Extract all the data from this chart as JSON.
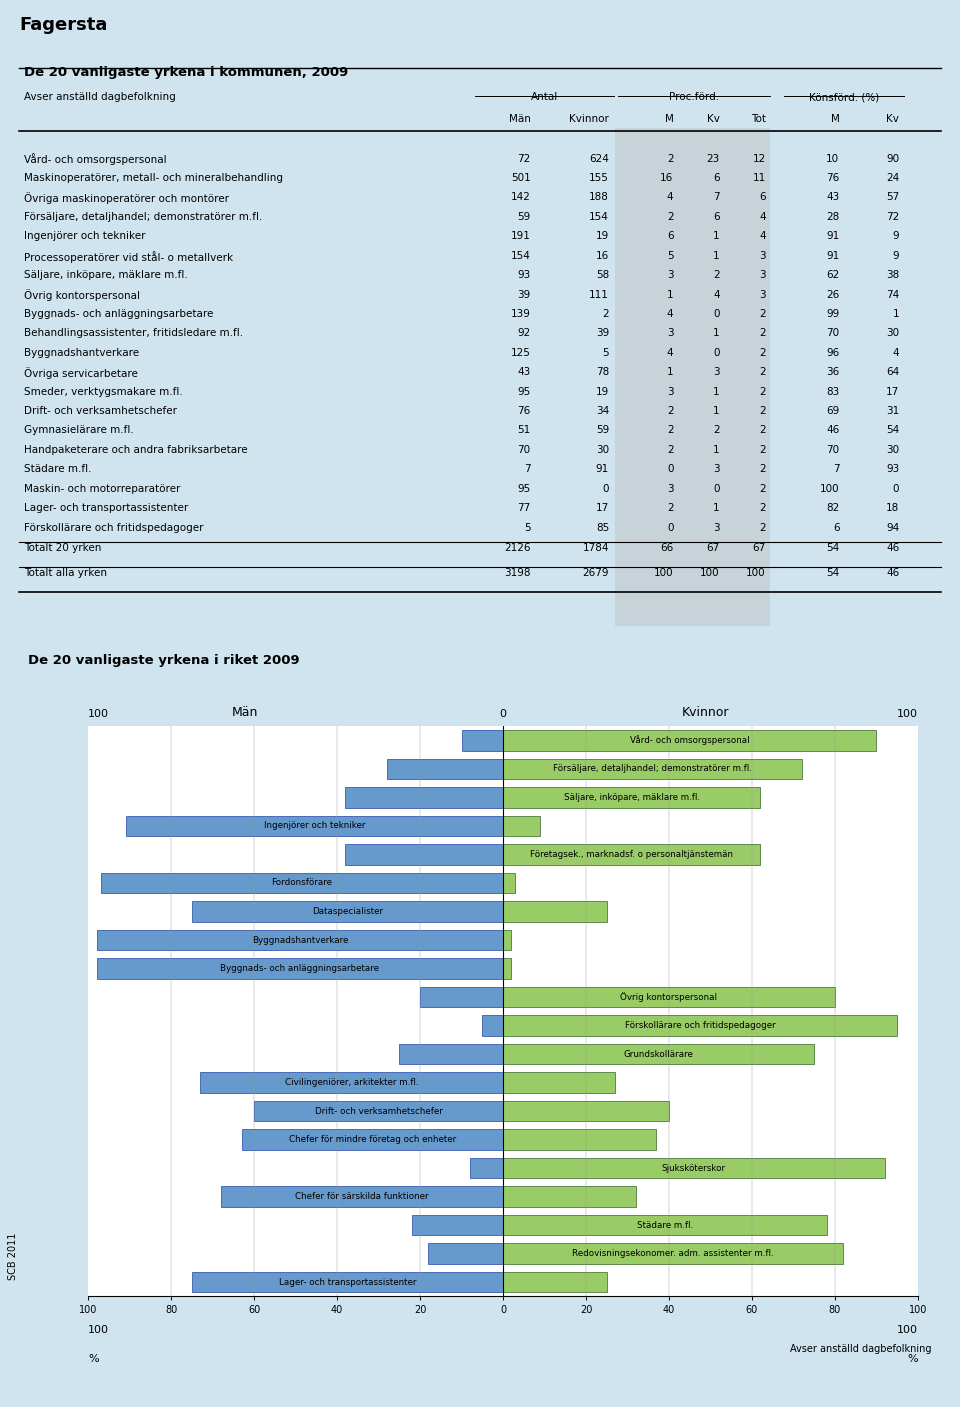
{
  "title": "Fagersta",
  "table_title": "De 20 vanligaste yrkena i kommunen, 2009",
  "chart_title": "De 20 vanligaste yrkena i riket 2009",
  "col_header1": "Avser anställd dagbefolkning",
  "col_header2": "Antal",
  "col_header3": "Proc.förd.",
  "col_header4": "Könsförd. (%)",
  "col_sub": [
    "Män",
    "Kvinnor",
    "M",
    "Kv",
    "Tot",
    "M",
    "Kv"
  ],
  "rows": [
    {
      "name": "Vård- och omsorgspersonal",
      "man": 72,
      "kvinna": 624,
      "pM": 2,
      "pKv": 23,
      "pTot": 12,
      "kM": 10,
      "kKv": 90
    },
    {
      "name": "Maskinoperatörer, metall- och mineralbehandling",
      "man": 501,
      "kvinna": 155,
      "pM": 16,
      "pKv": 6,
      "pTot": 11,
      "kM": 76,
      "kKv": 24
    },
    {
      "name": "Övriga maskinoperatörer och montörer",
      "man": 142,
      "kvinna": 188,
      "pM": 4,
      "pKv": 7,
      "pTot": 6,
      "kM": 43,
      "kKv": 57
    },
    {
      "name": "Försäljare, detaljhandel; demonstratörer m.fl.",
      "man": 59,
      "kvinna": 154,
      "pM": 2,
      "pKv": 6,
      "pTot": 4,
      "kM": 28,
      "kKv": 72
    },
    {
      "name": "Ingenjörer och tekniker",
      "man": 191,
      "kvinna": 19,
      "pM": 6,
      "pKv": 1,
      "pTot": 4,
      "kM": 91,
      "kKv": 9
    },
    {
      "name": "Processoperatörer vid stål- o metallverk",
      "man": 154,
      "kvinna": 16,
      "pM": 5,
      "pKv": 1,
      "pTot": 3,
      "kM": 91,
      "kKv": 9
    },
    {
      "name": "Säljare, inköpare, mäklare m.fl.",
      "man": 93,
      "kvinna": 58,
      "pM": 3,
      "pKv": 2,
      "pTot": 3,
      "kM": 62,
      "kKv": 38
    },
    {
      "name": "Övrig kontorspersonal",
      "man": 39,
      "kvinna": 111,
      "pM": 1,
      "pKv": 4,
      "pTot": 3,
      "kM": 26,
      "kKv": 74
    },
    {
      "name": "Byggnads- och anläggningsarbetare",
      "man": 139,
      "kvinna": 2,
      "pM": 4,
      "pKv": 0,
      "pTot": 2,
      "kM": 99,
      "kKv": 1
    },
    {
      "name": "Behandlingsassistenter, fritidsledare m.fl.",
      "man": 92,
      "kvinna": 39,
      "pM": 3,
      "pKv": 1,
      "pTot": 2,
      "kM": 70,
      "kKv": 30
    },
    {
      "name": "Byggnadshantverkare",
      "man": 125,
      "kvinna": 5,
      "pM": 4,
      "pKv": 0,
      "pTot": 2,
      "kM": 96,
      "kKv": 4
    },
    {
      "name": "Övriga servicarbetare",
      "man": 43,
      "kvinna": 78,
      "pM": 1,
      "pKv": 3,
      "pTot": 2,
      "kM": 36,
      "kKv": 64
    },
    {
      "name": "Smeder, verktygsmakare m.fl.",
      "man": 95,
      "kvinna": 19,
      "pM": 3,
      "pKv": 1,
      "pTot": 2,
      "kM": 83,
      "kKv": 17
    },
    {
      "name": "Drift- och verksamhetschefer",
      "man": 76,
      "kvinna": 34,
      "pM": 2,
      "pKv": 1,
      "pTot": 2,
      "kM": 69,
      "kKv": 31
    },
    {
      "name": "Gymnasielärare m.fl.",
      "man": 51,
      "kvinna": 59,
      "pM": 2,
      "pKv": 2,
      "pTot": 2,
      "kM": 46,
      "kKv": 54
    },
    {
      "name": "Handpaketerare och andra fabriksarbetare",
      "man": 70,
      "kvinna": 30,
      "pM": 2,
      "pKv": 1,
      "pTot": 2,
      "kM": 70,
      "kKv": 30
    },
    {
      "name": "Städare m.fl.",
      "man": 7,
      "kvinna": 91,
      "pM": 0,
      "pKv": 3,
      "pTot": 2,
      "kM": 7,
      "kKv": 93
    },
    {
      "name": "Maskin- och motorreparatörer",
      "man": 95,
      "kvinna": 0,
      "pM": 3,
      "pKv": 0,
      "pTot": 2,
      "kM": 100,
      "kKv": 0
    },
    {
      "name": "Lager- och transportassistenter",
      "man": 77,
      "kvinna": 17,
      "pM": 2,
      "pKv": 1,
      "pTot": 2,
      "kM": 82,
      "kKv": 18
    },
    {
      "name": "Förskollärare och fritidspedagoger",
      "man": 5,
      "kvinna": 85,
      "pM": 0,
      "pKv": 3,
      "pTot": 2,
      "kM": 6,
      "kKv": 94
    }
  ],
  "total_20": {
    "man": 2126,
    "kvinna": 1784,
    "pM": 66,
    "pKv": 67,
    "pTot": 67,
    "kM": 54,
    "kKv": 46
  },
  "total_all": {
    "man": 3198,
    "kvinna": 2679,
    "pM": 100,
    "pKv": 100,
    "pTot": 100,
    "kM": 54,
    "kKv": 46
  },
  "chart_bars": [
    {
      "label": "Vård- och omsorgspersonal",
      "men": 10,
      "women": 90
    },
    {
      "label": "Försäljare, detaljhandel; demonstratörer m.fl.",
      "men": 28,
      "women": 72
    },
    {
      "label": "Säljare, inköpare, mäklare m.fl.",
      "men": 38,
      "women": 62
    },
    {
      "label": "Ingenjörer och tekniker",
      "men": 91,
      "women": 9
    },
    {
      "label": "Företagsek., marknadsf. o personaltjänstemän",
      "men": 38,
      "women": 62
    },
    {
      "label": "Fordonsförare",
      "men": 97,
      "women": 3
    },
    {
      "label": "Dataspecialister",
      "men": 75,
      "women": 25
    },
    {
      "label": "Byggnadshantverkare",
      "men": 98,
      "women": 2
    },
    {
      "label": "Byggnads- och anläggningsarbetare",
      "men": 98,
      "women": 2
    },
    {
      "label": "Övrig kontorspersonal",
      "men": 20,
      "women": 80
    },
    {
      "label": "Förskollärare och fritidspedagoger",
      "men": 5,
      "women": 95
    },
    {
      "label": "Grundskollärare",
      "men": 25,
      "women": 75
    },
    {
      "label": "Civilingeniörer, arkitekter m.fl.",
      "men": 73,
      "women": 27
    },
    {
      "label": "Drift- och verksamhetschefer",
      "men": 60,
      "women": 40
    },
    {
      "label": "Chefer för mindre företag och enheter",
      "men": 63,
      "women": 37
    },
    {
      "label": "Sjuksköterskor",
      "men": 8,
      "women": 92
    },
    {
      "label": "Chefer för särskilda funktioner",
      "men": 68,
      "women": 32
    },
    {
      "label": "Städare m.fl.",
      "men": 22,
      "women": 78
    },
    {
      "label": "Redovisningsekonomer. adm. assistenter m.fl.",
      "men": 18,
      "women": 82
    },
    {
      "label": "Lager- och transportassistenter",
      "men": 75,
      "women": 25
    }
  ],
  "blue_color": "#6699CC",
  "green_color": "#99CC66",
  "bg_color": "#D0E4F0",
  "table_bg": "#E8F2FA",
  "gray_col": "#BEBEBE"
}
